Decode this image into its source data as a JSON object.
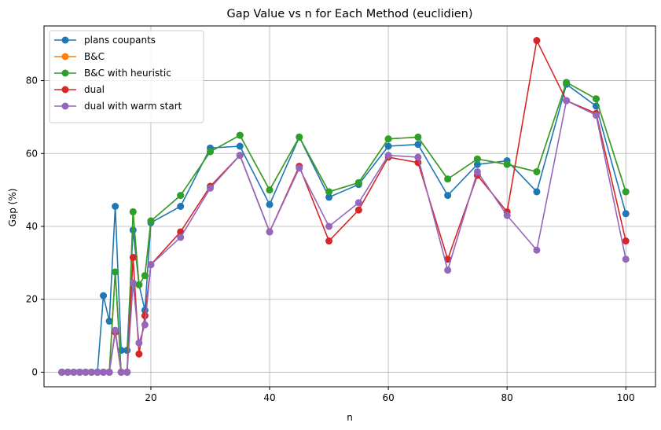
{
  "chart_data": {
    "type": "line",
    "title": "Gap Value vs n for Each Method (euclidien)",
    "xlabel": "n",
    "ylabel": "Gap (%)",
    "xlim": [
      2,
      105
    ],
    "ylim": [
      -4,
      95
    ],
    "xticks": [
      20,
      40,
      60,
      80,
      100
    ],
    "yticks": [
      0,
      20,
      40,
      60,
      80
    ],
    "grid": true,
    "legend_position": "top-left",
    "x": [
      5,
      6,
      7,
      8,
      9,
      10,
      11,
      12,
      13,
      14,
      15,
      16,
      17,
      18,
      19,
      20,
      25,
      30,
      35,
      40,
      45,
      50,
      55,
      60,
      65,
      70,
      75,
      80,
      85,
      90,
      95,
      100
    ],
    "series": [
      {
        "name": "plans coupants",
        "color": "#1f77b4",
        "values": [
          0,
          0,
          0,
          0,
          0,
          0,
          0,
          21,
          14,
          45.5,
          6,
          6,
          39,
          24,
          17,
          41,
          45.5,
          61.5,
          62,
          46,
          64.5,
          48,
          51.5,
          62,
          62.5,
          48.5,
          57,
          58,
          49.5,
          79,
          73,
          43.5
        ]
      },
      {
        "name": "B&C",
        "color": "#ff7f0e",
        "values": [
          0,
          0,
          0,
          0,
          0,
          0,
          0,
          0,
          0,
          27.5,
          0,
          0,
          44,
          24,
          26.5,
          41.5,
          48.5,
          60.5,
          65,
          50,
          64.5,
          49.5,
          52,
          64,
          64.5,
          53,
          58.5,
          57,
          55,
          79.5,
          75,
          49.5
        ]
      },
      {
        "name": "B&C with heuristic",
        "color": "#2ca02c",
        "values": [
          0,
          0,
          0,
          0,
          0,
          0,
          0,
          0,
          0,
          27.5,
          0,
          0,
          44,
          24,
          26.5,
          41.5,
          48.5,
          60.5,
          65,
          50,
          64.5,
          49.5,
          52,
          64,
          64.5,
          53,
          58.5,
          57,
          55,
          79.5,
          75,
          49.5
        ]
      },
      {
        "name": "dual",
        "color": "#d62728",
        "values": [
          0,
          0,
          0,
          0,
          0,
          0,
          0,
          0,
          0,
          11,
          0,
          0,
          31.5,
          5,
          15.5,
          29.5,
          38.5,
          51,
          59.5,
          38.5,
          56.5,
          36,
          44.5,
          59,
          57.5,
          31,
          54,
          44,
          91,
          74.5,
          71,
          36
        ]
      },
      {
        "name": "dual with warm start",
        "color": "#9467bd",
        "values": [
          0,
          0,
          0,
          0,
          0,
          0,
          0,
          0,
          0,
          11.5,
          0,
          0,
          24.5,
          8,
          13,
          29.5,
          37,
          50.5,
          59.5,
          38.5,
          56,
          40,
          46.5,
          59.5,
          59,
          28,
          55,
          43,
          33.5,
          74.5,
          70.5,
          31
        ]
      }
    ]
  }
}
